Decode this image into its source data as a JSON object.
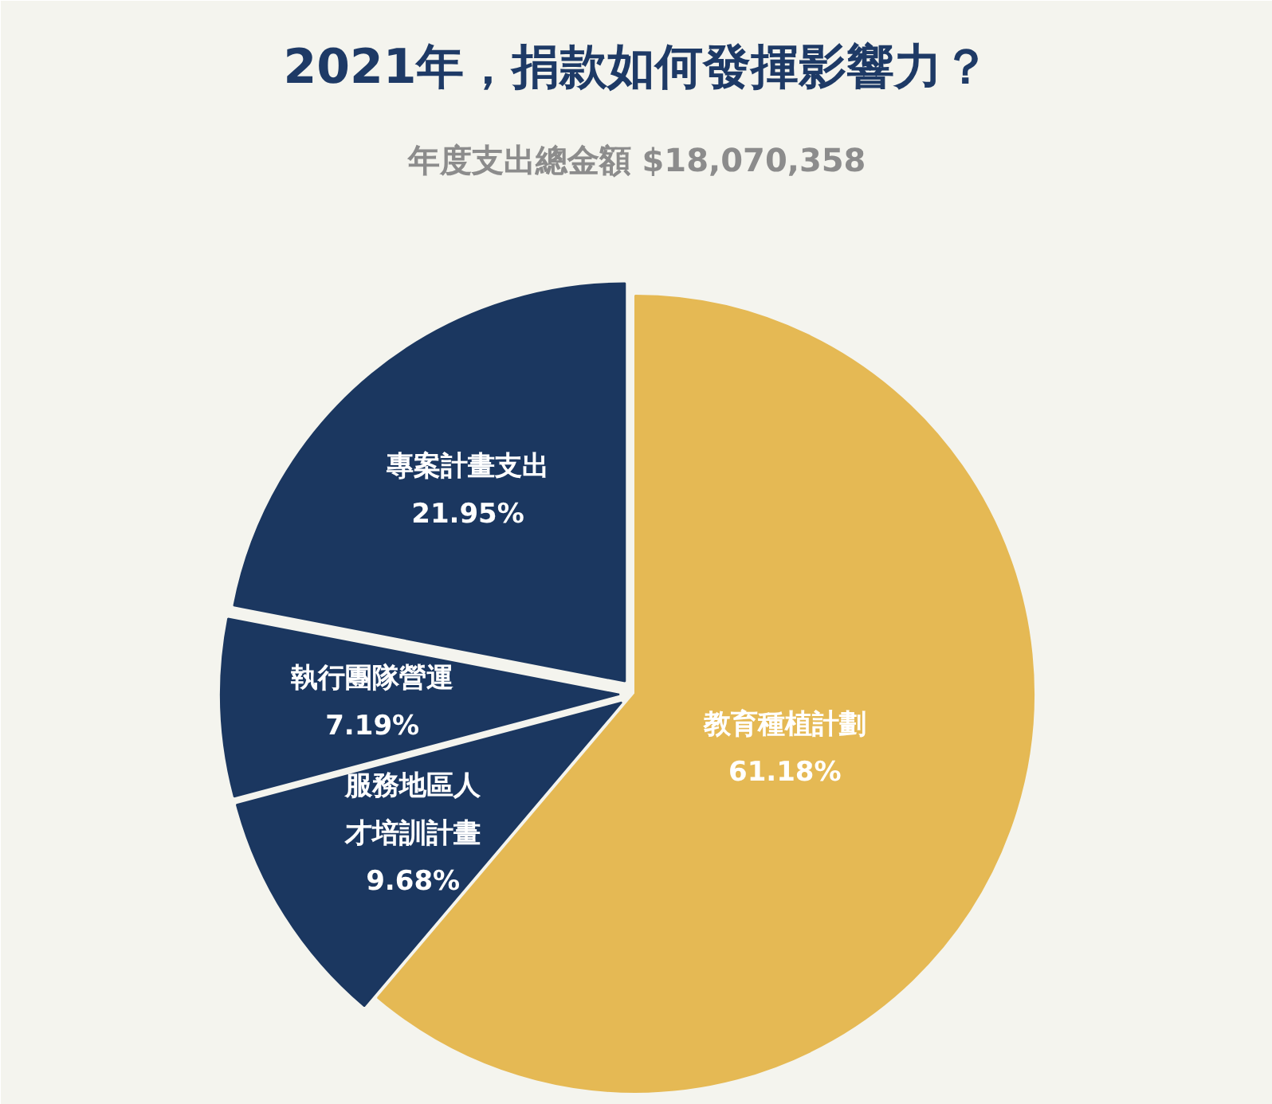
{
  "chart_data": {
    "type": "pie",
    "title": "2021年，捐款如何發揮影響力？",
    "subtitle": "年度支出總金額 $18,070,358",
    "categories": [
      "教育種植計劃",
      "服務地區人才培訓計畫",
      "執行團隊營運",
      "專案計畫支出"
    ],
    "values": [
      61.18,
      9.68,
      7.19,
      21.95
    ],
    "colors": [
      "#e5b954",
      "#1b3760",
      "#1b3760",
      "#1b3760"
    ],
    "value_labels": [
      "61.18%",
      "9.68%",
      "7.19%",
      "21.95%"
    ]
  }
}
